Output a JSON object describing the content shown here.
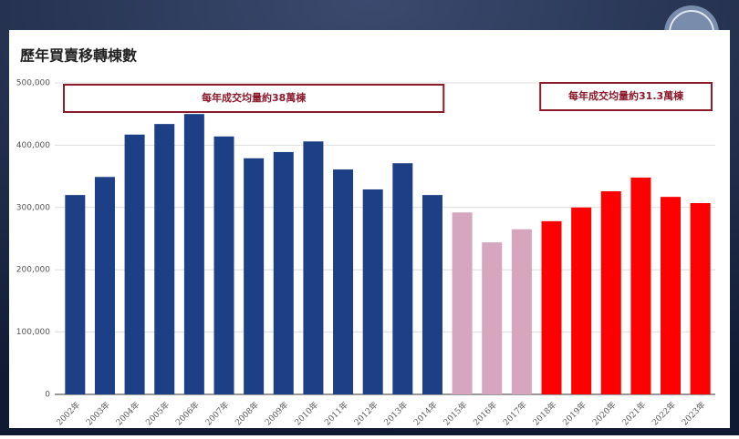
{
  "chart_data": {
    "type": "bar",
    "title": "歷年買賣移轉棟數",
    "categories": [
      "2002年",
      "2003年",
      "2004年",
      "2005年",
      "2006年",
      "2007年",
      "2008年",
      "2009年",
      "2010年",
      "2011年",
      "2012年",
      "2013年",
      "2014年",
      "2015年",
      "2016年",
      "2017年",
      "2018年",
      "2019年",
      "2020年",
      "2021年",
      "2022年",
      "2023年"
    ],
    "values": [
      320000,
      349000,
      417000,
      434000,
      450000,
      414000,
      379000,
      389000,
      406000,
      361000,
      329000,
      371000,
      320000,
      292000,
      244000,
      265000,
      278000,
      300000,
      326000,
      348000,
      317000,
      307000
    ],
    "colors": [
      "#1c3f86",
      "#1c3f86",
      "#1c3f86",
      "#1c3f86",
      "#1c3f86",
      "#1c3f86",
      "#1c3f86",
      "#1c3f86",
      "#1c3f86",
      "#1c3f86",
      "#1c3f86",
      "#1c3f86",
      "#1c3f86",
      "#d5a6bd",
      "#d5a6bd",
      "#d5a6bd",
      "#ff0000",
      "#ff0000",
      "#ff0000",
      "#ff0000",
      "#ff0000",
      "#ff0000"
    ],
    "ylim": [
      0,
      500000
    ],
    "yticks": [
      0,
      {
        "value": 100000,
        "label": "100,000"
      },
      {
        "value": 200000,
        "label": "200,000"
      },
      {
        "value": 300000,
        "label": "300,000"
      },
      {
        "value": 400000,
        "label": "400,000"
      },
      {
        "value": 500000,
        "label": "500,000"
      }
    ],
    "grid": true,
    "annotations": [
      {
        "text": "每年成交均量約38萬棟"
      },
      {
        "text": "每年成交均量約31.3萬棟"
      }
    ]
  }
}
